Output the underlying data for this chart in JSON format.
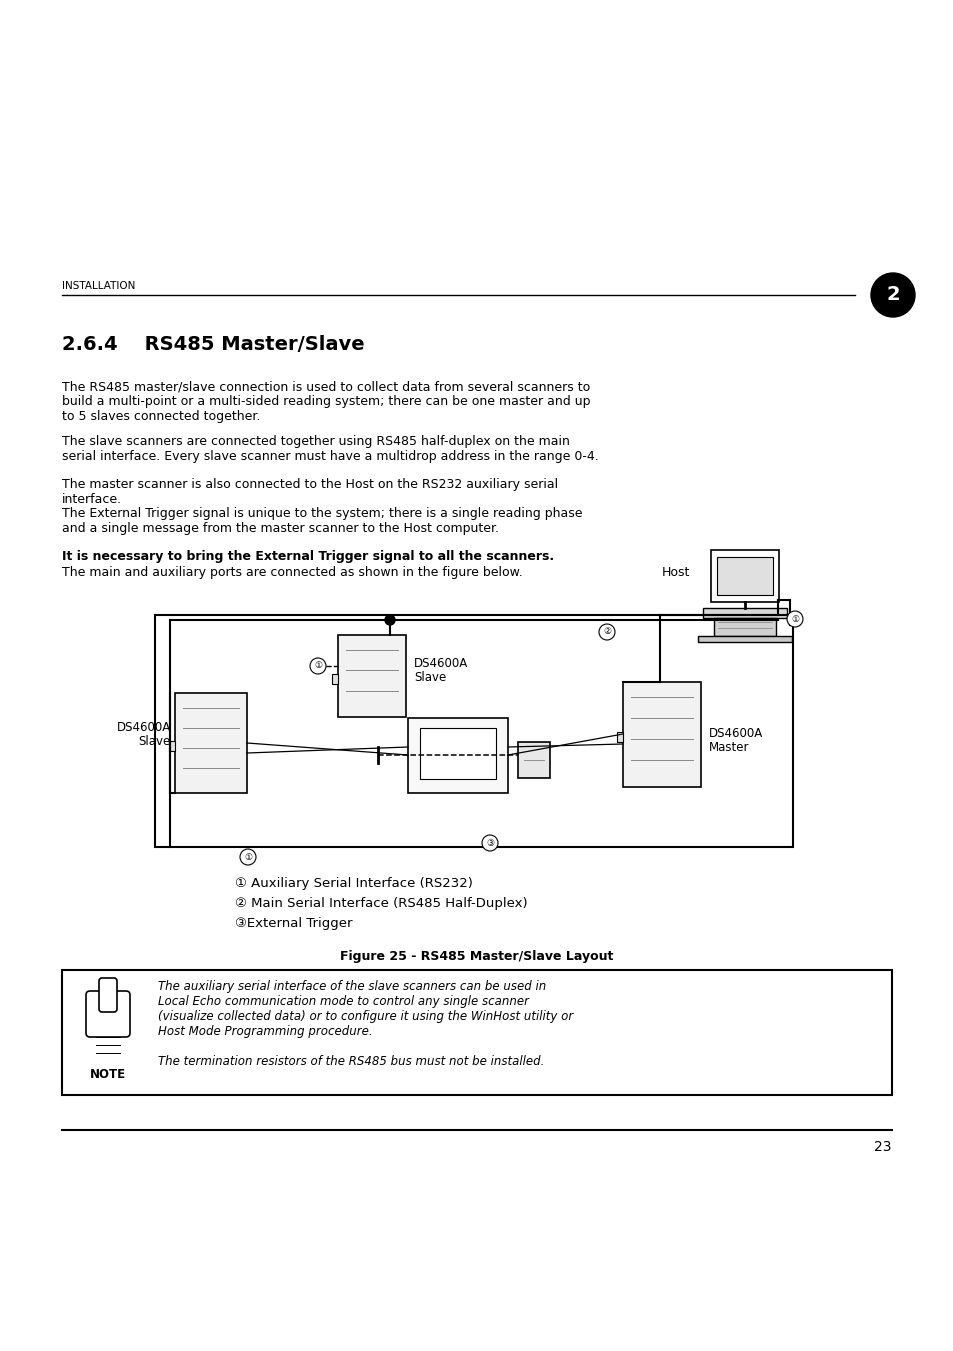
{
  "bg_color": "#ffffff",
  "text_color": "#000000",
  "page_number": "23",
  "chapter_label": "INSTALLATION",
  "chapter_number": "2",
  "section_title": "2.6.4    RS485 Master/Slave",
  "para1": "The RS485 master/slave connection is used to collect data from several scanners to\nbuild a multi-point or a multi-sided reading system; there can be one master and up\nto 5 slaves connected together.",
  "para2": "The slave scanners are connected together using RS485 half-duplex on the main\nserial interface. Every slave scanner must have a multidrop address in the range 0-4.",
  "para3": "The master scanner is also connected to the Host on the RS232 auxiliary serial\ninterface.",
  "para4": "The External Trigger signal is unique to the system; there is a single reading phase\nand a single message from the master scanner to the Host computer.",
  "para5_bold": "It is necessary to bring the External Trigger signal to all the scanners.",
  "para6": "The main and auxiliary ports are connected as shown in the figure below.",
  "legend1": "① Auxiliary Serial Interface (RS232)",
  "legend2": "② Main Serial Interface (RS485 Half-Duplex)",
  "legend3": "③External Trigger",
  "fig_caption": "Figure 25 - RS485 Master/Slave Layout",
  "note_text1": "The auxiliary serial interface of the slave scanners can be used in\nLocal Echo communication mode to control any single scanner\n(visualize collected data) or to configure it using the WinHost utility or\nHost Mode Programming procedure.",
  "note_text2": "The termination resistors of the RS485 bus must not be installed.",
  "note_label": "NOTE"
}
